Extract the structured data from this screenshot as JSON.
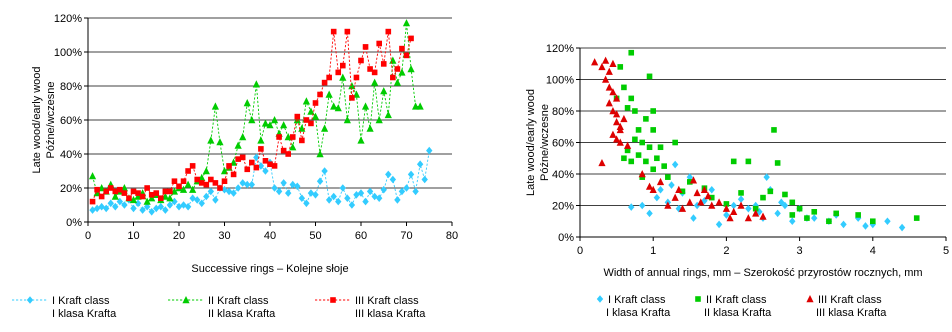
{
  "chart_data": [
    {
      "type": "line",
      "xlabel": "Successive rings – Kolejne słoje",
      "ylabel_lines": [
        "Late wood/early wood",
        "Późne/wczesne"
      ],
      "xlim": [
        0,
        80
      ],
      "ylim": [
        0,
        1.2
      ],
      "xticks": [
        "0",
        "10",
        "20",
        "30",
        "40",
        "50",
        "60",
        "70",
        "80"
      ],
      "yticks": [
        "0%",
        "20%",
        "40%",
        "60%",
        "80%",
        "100%",
        "120%"
      ],
      "grid": "horizontal",
      "legend_position": "bottom",
      "series": [
        {
          "name": "I Kraft class",
          "name2": "I klasa Krafta",
          "color": "#33CCFF",
          "marker": "diamond",
          "x": [
            1,
            2,
            3,
            4,
            5,
            6,
            7,
            8,
            9,
            10,
            11,
            12,
            13,
            14,
            15,
            16,
            17,
            18,
            19,
            20,
            21,
            22,
            23,
            24,
            25,
            26,
            27,
            28,
            29,
            30,
            31,
            32,
            33,
            34,
            35,
            36,
            37,
            38,
            39,
            40,
            41,
            42,
            43,
            44,
            45,
            46,
            47,
            48,
            49,
            50,
            51,
            52,
            53,
            54,
            55,
            56,
            57,
            58,
            59,
            60,
            61,
            62,
            63,
            64,
            65,
            66,
            67,
            68,
            69,
            70,
            71,
            72,
            73,
            74,
            75
          ],
          "y": [
            0.07,
            0.08,
            0.09,
            0.08,
            0.11,
            0.09,
            0.12,
            0.1,
            0.13,
            0.08,
            0.11,
            0.07,
            0.09,
            0.06,
            0.08,
            0.09,
            0.07,
            0.1,
            0.12,
            0.09,
            0.1,
            0.09,
            0.14,
            0.13,
            0.11,
            0.15,
            0.18,
            0.13,
            0.2,
            0.19,
            0.18,
            0.17,
            0.2,
            0.23,
            0.22,
            0.22,
            0.38,
            0.33,
            0.3,
            0.35,
            0.2,
            0.18,
            0.23,
            0.17,
            0.22,
            0.21,
            0.14,
            0.11,
            0.17,
            0.16,
            0.24,
            0.3,
            0.13,
            0.15,
            0.12,
            0.2,
            0.14,
            0.1,
            0.16,
            0.17,
            0.12,
            0.18,
            0.15,
            0.14,
            0.19,
            0.28,
            0.25,
            0.13,
            0.18,
            0.2,
            0.28,
            0.18,
            0.34,
            0.25,
            0.42
          ]
        },
        {
          "name": "II Kraft class",
          "name2": "II klasa Krafta",
          "color": "#00CC00",
          "marker": "triangle",
          "x": [
            1,
            2,
            3,
            4,
            5,
            6,
            7,
            8,
            9,
            10,
            11,
            12,
            13,
            14,
            15,
            16,
            17,
            18,
            19,
            20,
            21,
            22,
            23,
            24,
            25,
            26,
            27,
            28,
            29,
            30,
            31,
            32,
            33,
            34,
            35,
            36,
            37,
            38,
            39,
            40,
            41,
            42,
            43,
            44,
            45,
            46,
            47,
            48,
            49,
            50,
            51,
            52,
            53,
            54,
            55,
            56,
            57,
            58,
            59,
            60,
            61,
            62,
            63,
            64,
            65,
            66,
            67,
            68,
            69,
            70,
            71,
            72,
            73
          ],
          "y": [
            0.27,
            0.17,
            0.2,
            0.18,
            0.22,
            0.15,
            0.18,
            0.2,
            0.14,
            0.13,
            0.15,
            0.17,
            0.12,
            0.14,
            0.16,
            0.13,
            0.15,
            0.14,
            0.18,
            0.2,
            0.19,
            0.22,
            0.19,
            0.24,
            0.26,
            0.3,
            0.48,
            0.68,
            0.47,
            0.3,
            0.32,
            0.35,
            0.45,
            0.5,
            0.7,
            0.6,
            0.81,
            0.48,
            0.58,
            0.57,
            0.6,
            0.52,
            0.57,
            0.5,
            0.44,
            0.6,
            0.55,
            0.71,
            0.65,
            0.62,
            0.4,
            0.55,
            0.75,
            0.68,
            0.67,
            0.85,
            0.6,
            0.8,
            0.75,
            0.48,
            0.68,
            0.55,
            0.82,
            0.6,
            0.77,
            0.63,
            0.95,
            0.82,
            0.88,
            1.17,
            0.9,
            0.68,
            0.68
          ]
        },
        {
          "name": "III Kraft class",
          "name2": "III klasa Krafta",
          "color": "#FF0000",
          "marker": "square",
          "x": [
            1,
            2,
            3,
            4,
            5,
            6,
            7,
            8,
            9,
            10,
            11,
            12,
            13,
            14,
            15,
            16,
            17,
            18,
            19,
            20,
            21,
            22,
            23,
            24,
            25,
            26,
            27,
            28,
            29,
            30,
            31,
            32,
            33,
            34,
            35,
            36,
            37,
            38,
            39,
            40,
            41,
            42,
            43,
            44,
            45,
            46,
            47,
            48,
            49,
            50,
            51,
            52,
            53,
            54,
            55,
            56,
            57,
            58,
            59,
            60,
            61,
            62,
            63,
            64,
            65,
            66,
            67,
            68,
            69,
            70,
            71
          ],
          "y": [
            0.12,
            0.19,
            0.15,
            0.18,
            0.2,
            0.18,
            0.19,
            0.17,
            0.14,
            0.18,
            0.17,
            0.15,
            0.2,
            0.16,
            0.17,
            0.14,
            0.18,
            0.18,
            0.24,
            0.21,
            0.24,
            0.3,
            0.33,
            0.25,
            0.23,
            0.22,
            0.25,
            0.23,
            0.2,
            0.24,
            0.33,
            0.28,
            0.37,
            0.38,
            0.31,
            0.35,
            0.32,
            0.43,
            0.36,
            0.34,
            0.33,
            0.5,
            0.42,
            0.4,
            0.5,
            0.62,
            0.48,
            0.6,
            0.58,
            0.7,
            0.75,
            0.82,
            0.85,
            1.12,
            0.88,
            0.92,
            1.12,
            0.73,
            0.85,
            0.95,
            1.03,
            0.9,
            0.88,
            1.05,
            0.93,
            1.12,
            0.85,
            0.9,
            1.02,
            0.98,
            1.08
          ]
        }
      ]
    },
    {
      "type": "scatter",
      "xlabel": "Width of annual rings, mm – Szerokość przyrostów rocznych, mm",
      "ylabel_lines": [
        "Late wood/early wood",
        "Późne/wczesne"
      ],
      "xlim": [
        0,
        5
      ],
      "ylim": [
        0,
        1.2
      ],
      "xticks": [
        "0",
        "1",
        "2",
        "3",
        "4",
        "5"
      ],
      "yticks": [
        "0%",
        "20%",
        "40%",
        "60%",
        "80%",
        "100%",
        "120%"
      ],
      "grid": "horizontal",
      "legend_position": "bottom",
      "series": [
        {
          "name": "I Kraft class",
          "name2": "I klasa Krafta",
          "color": "#33CCFF",
          "marker": "diamond",
          "points": [
            [
              1.3,
              0.46
            ],
            [
              1.5,
              0.38
            ],
            [
              1.1,
              0.3
            ],
            [
              0.7,
              0.19
            ],
            [
              0.95,
              0.15
            ],
            [
              1.2,
              0.22
            ],
            [
              1.4,
              0.28
            ],
            [
              1.6,
              0.2
            ],
            [
              1.8,
              0.3
            ],
            [
              2.0,
              0.14
            ],
            [
              2.2,
              0.24
            ],
            [
              2.4,
              0.2
            ],
            [
              2.5,
              0.12
            ],
            [
              2.55,
              0.38
            ],
            [
              2.6,
              0.3
            ],
            [
              2.7,
              0.15
            ],
            [
              2.8,
              0.2
            ],
            [
              2.9,
              0.1
            ],
            [
              3.0,
              0.18
            ],
            [
              3.2,
              0.12
            ],
            [
              3.4,
              0.1
            ],
            [
              3.6,
              0.08
            ],
            [
              3.8,
              0.12
            ],
            [
              4.0,
              0.08
            ],
            [
              4.2,
              0.1
            ],
            [
              4.4,
              0.06
            ],
            [
              1.9,
              0.08
            ],
            [
              2.1,
              0.2
            ],
            [
              2.3,
              0.18
            ],
            [
              1.7,
              0.23
            ],
            [
              1.55,
              0.12
            ],
            [
              1.25,
              0.33
            ],
            [
              1.05,
              0.25
            ],
            [
              0.85,
              0.2
            ],
            [
              1.35,
              0.18
            ],
            [
              2.45,
              0.16
            ],
            [
              2.75,
              0.22
            ],
            [
              3.1,
              0.12
            ],
            [
              3.5,
              0.14
            ],
            [
              3.9,
              0.07
            ]
          ]
        },
        {
          "name": "II Kraft class",
          "name2": "II klasa Krafta",
          "color": "#00CC00",
          "marker": "square",
          "points": [
            [
              0.7,
              1.17
            ],
            [
              0.55,
              1.08
            ],
            [
              0.6,
              0.95
            ],
            [
              0.5,
              0.88
            ],
            [
              0.65,
              0.82
            ],
            [
              0.75,
              0.8
            ],
            [
              0.9,
              0.75
            ],
            [
              0.8,
              0.68
            ],
            [
              1.0,
              0.68
            ],
            [
              0.85,
              0.6
            ],
            [
              0.95,
              0.57
            ],
            [
              1.1,
              0.57
            ],
            [
              1.3,
              0.6
            ],
            [
              0.6,
              0.5
            ],
            [
              0.7,
              0.48
            ],
            [
              0.9,
              0.48
            ],
            [
              1.0,
              0.43
            ],
            [
              0.85,
              0.38
            ],
            [
              1.2,
              0.38
            ],
            [
              1.5,
              0.35
            ],
            [
              1.7,
              0.31
            ],
            [
              2.1,
              0.48
            ],
            [
              2.3,
              0.48
            ],
            [
              2.65,
              0.68
            ],
            [
              2.7,
              0.47
            ],
            [
              1.4,
              0.29
            ],
            [
              1.8,
              0.25
            ],
            [
              2.0,
              0.21
            ],
            [
              2.2,
              0.28
            ],
            [
              2.5,
              0.25
            ],
            [
              2.6,
              0.29
            ],
            [
              2.8,
              0.27
            ],
            [
              2.9,
              0.22
            ],
            [
              3.0,
              0.18
            ],
            [
              3.2,
              0.16
            ],
            [
              3.5,
              0.15
            ],
            [
              3.8,
              0.14
            ],
            [
              4.0,
              0.1
            ],
            [
              4.6,
              0.12
            ],
            [
              2.4,
              0.18
            ],
            [
              2.9,
              0.14
            ],
            [
              3.1,
              0.12
            ],
            [
              3.4,
              0.1
            ],
            [
              0.65,
              0.55
            ],
            [
              0.75,
              0.62
            ],
            [
              0.8,
              0.52
            ],
            [
              1.05,
              0.5
            ],
            [
              1.15,
              0.45
            ],
            [
              0.95,
              1.02
            ],
            [
              1.0,
              0.8
            ],
            [
              0.7,
              0.88
            ]
          ]
        },
        {
          "name": "III Kraft class",
          "name2": "III klasa Krafta",
          "color": "#DD0000",
          "marker": "triangle",
          "points": [
            [
              0.2,
              1.11
            ],
            [
              0.3,
              1.08
            ],
            [
              0.35,
              1.12
            ],
            [
              0.4,
              1.05
            ],
            [
              0.45,
              1.1
            ],
            [
              0.35,
              1.0
            ],
            [
              0.4,
              0.95
            ],
            [
              0.45,
              0.92
            ],
            [
              0.5,
              0.88
            ],
            [
              0.4,
              0.85
            ],
            [
              0.45,
              0.8
            ],
            [
              0.5,
              0.73
            ],
            [
              0.55,
              0.68
            ],
            [
              0.45,
              0.65
            ],
            [
              0.5,
              0.62
            ],
            [
              0.55,
              0.6
            ],
            [
              0.65,
              0.58
            ],
            [
              0.3,
              0.47
            ],
            [
              0.85,
              0.4
            ],
            [
              0.95,
              0.32
            ],
            [
              1.0,
              0.3
            ],
            [
              1.1,
              0.35
            ],
            [
              1.3,
              0.25
            ],
            [
              1.5,
              0.22
            ],
            [
              1.6,
              0.28
            ],
            [
              1.7,
              0.3
            ],
            [
              1.8,
              0.2
            ],
            [
              1.9,
              0.22
            ],
            [
              2.0,
              0.18
            ],
            [
              2.1,
              0.16
            ],
            [
              2.2,
              0.2
            ],
            [
              2.4,
              0.15
            ],
            [
              2.5,
              0.13
            ],
            [
              1.2,
              0.2
            ],
            [
              1.4,
              0.18
            ],
            [
              1.55,
              0.36
            ],
            [
              1.65,
              0.22
            ],
            [
              2.3,
              0.12
            ],
            [
              0.6,
              0.75
            ],
            [
              0.5,
              0.78
            ],
            [
              0.55,
              0.7
            ],
            [
              1.35,
              0.3
            ],
            [
              1.75,
              0.26
            ],
            [
              2.05,
              0.12
            ]
          ]
        }
      ]
    }
  ]
}
